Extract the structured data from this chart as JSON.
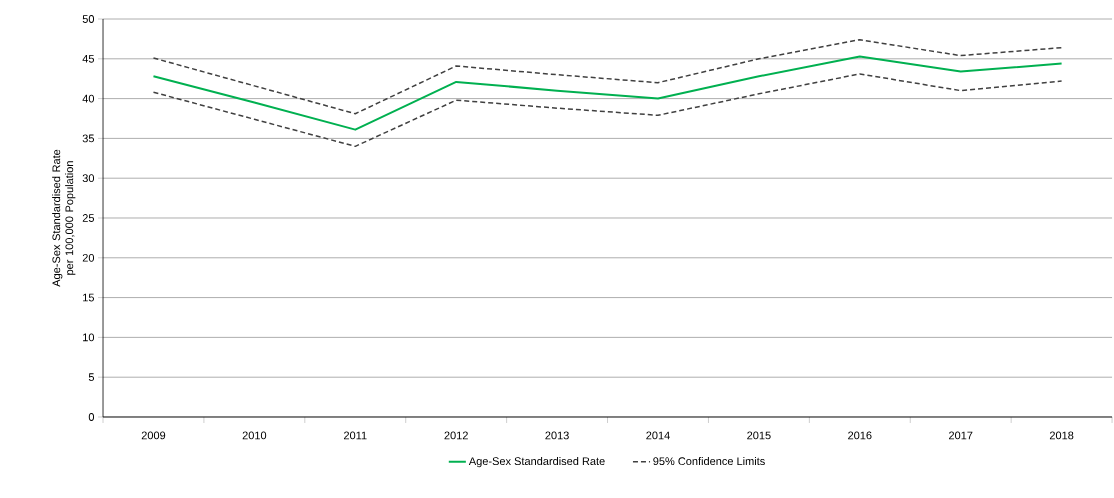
{
  "chart_data": {
    "type": "line",
    "ylabel": "Age-Sex Standardised Rate per 100,000 Population",
    "categories": [
      "2009",
      "2010",
      "2011",
      "2012",
      "2013",
      "2014",
      "2015",
      "2016",
      "2017",
      "2018"
    ],
    "series": [
      {
        "name": "Age-Sex Standardised Rate",
        "color": "#00b050",
        "line_style": "solid",
        "values": [
          42.8,
          39.5,
          36.1,
          42.1,
          41.0,
          40.0,
          42.8,
          45.3,
          43.4,
          44.4
        ]
      },
      {
        "name": "95% Confidence Limits",
        "color": "#404040",
        "line_style": "dashed",
        "values": [
          45.1,
          41.6,
          38.1,
          44.1,
          43.0,
          42.0,
          45.0,
          47.4,
          45.4,
          46.4
        ]
      },
      {
        "color": "#404040",
        "line_style": "dashed",
        "values": [
          40.8,
          37.4,
          34.0,
          39.8,
          38.8,
          37.9,
          40.6,
          43.1,
          41.0,
          42.2
        ]
      }
    ],
    "ylim": [
      0,
      50
    ],
    "yticks": [
      0,
      5,
      10,
      15,
      20,
      25,
      30,
      35,
      40,
      45,
      50
    ],
    "grid": "y",
    "legend": "bottom",
    "marker": "none"
  }
}
